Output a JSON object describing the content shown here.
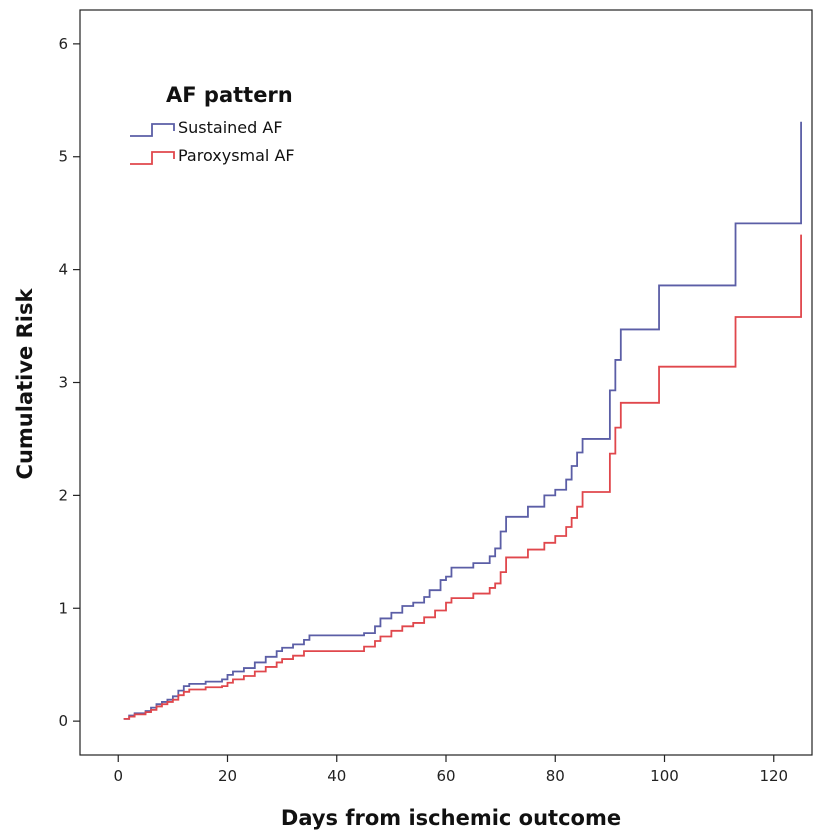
{
  "chart_data": {
    "type": "line",
    "step": true,
    "xlabel": "Days from ischemic outcome",
    "ylabel": "Cumulative Risk",
    "xlim": [
      -7,
      127
    ],
    "ylim": [
      -0.3,
      6.3
    ],
    "xticks": [
      0,
      20,
      40,
      60,
      80,
      100,
      120
    ],
    "yticks": [
      0,
      1,
      2,
      3,
      4,
      5,
      6
    ],
    "grid": false,
    "legend": {
      "title": "AF pattern",
      "placement": "top-left"
    },
    "series": [
      {
        "name": "Sustained AF",
        "color": "#5b5ea6",
        "points": [
          [
            1,
            0.02
          ],
          [
            2,
            0.05
          ],
          [
            3,
            0.07
          ],
          [
            5,
            0.09
          ],
          [
            6,
            0.12
          ],
          [
            7,
            0.15
          ],
          [
            8,
            0.17
          ],
          [
            9,
            0.19
          ],
          [
            10,
            0.22
          ],
          [
            11,
            0.27
          ],
          [
            12,
            0.31
          ],
          [
            13,
            0.33
          ],
          [
            16,
            0.35
          ],
          [
            19,
            0.37
          ],
          [
            20,
            0.41
          ],
          [
            21,
            0.44
          ],
          [
            23,
            0.47
          ],
          [
            25,
            0.52
          ],
          [
            27,
            0.57
          ],
          [
            29,
            0.62
          ],
          [
            30,
            0.65
          ],
          [
            32,
            0.68
          ],
          [
            34,
            0.72
          ],
          [
            35,
            0.76
          ],
          [
            45,
            0.78
          ],
          [
            47,
            0.84
          ],
          [
            48,
            0.91
          ],
          [
            50,
            0.96
          ],
          [
            52,
            1.02
          ],
          [
            54,
            1.05
          ],
          [
            56,
            1.1
          ],
          [
            57,
            1.16
          ],
          [
            59,
            1.25
          ],
          [
            60,
            1.28
          ],
          [
            61,
            1.36
          ],
          [
            65,
            1.4
          ],
          [
            68,
            1.46
          ],
          [
            69,
            1.53
          ],
          [
            70,
            1.68
          ],
          [
            71,
            1.81
          ],
          [
            75,
            1.9
          ],
          [
            78,
            2.0
          ],
          [
            80,
            2.05
          ],
          [
            82,
            2.14
          ],
          [
            83,
            2.26
          ],
          [
            84,
            2.38
          ],
          [
            85,
            2.5
          ],
          [
            90,
            2.93
          ],
          [
            91,
            3.2
          ],
          [
            92,
            3.47
          ],
          [
            99,
            3.86
          ],
          [
            113,
            4.41
          ],
          [
            125,
            5.31
          ]
        ]
      },
      {
        "name": "Paroxysmal AF",
        "color": "#e0474c",
        "points": [
          [
            1,
            0.02
          ],
          [
            2,
            0.04
          ],
          [
            3,
            0.06
          ],
          [
            5,
            0.08
          ],
          [
            6,
            0.1
          ],
          [
            7,
            0.13
          ],
          [
            8,
            0.15
          ],
          [
            9,
            0.17
          ],
          [
            10,
            0.19
          ],
          [
            11,
            0.23
          ],
          [
            12,
            0.26
          ],
          [
            13,
            0.28
          ],
          [
            16,
            0.3
          ],
          [
            19,
            0.31
          ],
          [
            20,
            0.34
          ],
          [
            21,
            0.37
          ],
          [
            23,
            0.4
          ],
          [
            25,
            0.44
          ],
          [
            27,
            0.48
          ],
          [
            29,
            0.52
          ],
          [
            30,
            0.55
          ],
          [
            32,
            0.58
          ],
          [
            34,
            0.62
          ],
          [
            45,
            0.66
          ],
          [
            47,
            0.71
          ],
          [
            48,
            0.75
          ],
          [
            50,
            0.8
          ],
          [
            52,
            0.84
          ],
          [
            54,
            0.87
          ],
          [
            56,
            0.92
          ],
          [
            58,
            0.98
          ],
          [
            60,
            1.05
          ],
          [
            61,
            1.09
          ],
          [
            65,
            1.13
          ],
          [
            68,
            1.18
          ],
          [
            69,
            1.22
          ],
          [
            70,
            1.32
          ],
          [
            71,
            1.45
          ],
          [
            75,
            1.52
          ],
          [
            78,
            1.58
          ],
          [
            80,
            1.64
          ],
          [
            82,
            1.72
          ],
          [
            83,
            1.8
          ],
          [
            84,
            1.9
          ],
          [
            85,
            2.03
          ],
          [
            90,
            2.37
          ],
          [
            91,
            2.6
          ],
          [
            92,
            2.82
          ],
          [
            99,
            3.14
          ],
          [
            113,
            3.58
          ],
          [
            125,
            4.31
          ]
        ]
      }
    ]
  }
}
